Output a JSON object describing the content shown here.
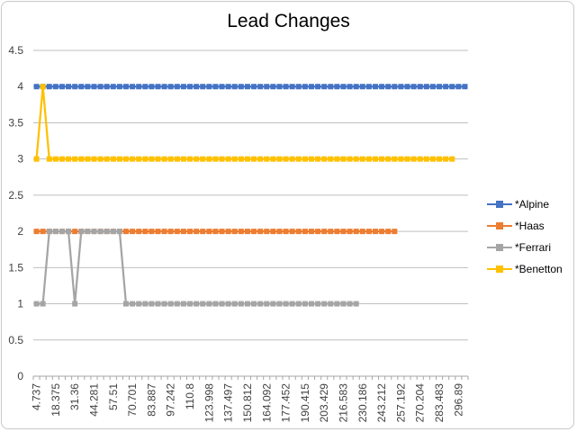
{
  "chart_data": {
    "type": "line",
    "title": "Lead Changes",
    "xlabel": "",
    "ylabel": "",
    "ylim": [
      0,
      4.5
    ],
    "yticks": [
      "0",
      "0.5",
      "1",
      "1.5",
      "2",
      "2.5",
      "3",
      "3.5",
      "4",
      "4.5"
    ],
    "x_tick_labels": [
      "4.737",
      "18.375",
      "31.36",
      "44.281",
      "57.51",
      "70.701",
      "83.887",
      "97.242",
      "110.8",
      "123.998",
      "137.497",
      "150.812",
      "164.092",
      "177.452",
      "190.415",
      "203.429",
      "216.583",
      "230.186",
      "243.212",
      "257.192",
      "270.204",
      "283.483",
      "296.89"
    ],
    "categories_count": 68,
    "grid": true,
    "legend_position": "right",
    "series": [
      {
        "name": "*Alpine",
        "color": "#4472C4",
        "values": [
          4,
          4,
          4,
          4,
          4,
          4,
          4,
          4,
          4,
          4,
          4,
          4,
          4,
          4,
          4,
          4,
          4,
          4,
          4,
          4,
          4,
          4,
          4,
          4,
          4,
          4,
          4,
          4,
          4,
          4,
          4,
          4,
          4,
          4,
          4,
          4,
          4,
          4,
          4,
          4,
          4,
          4,
          4,
          4,
          4,
          4,
          4,
          4,
          4,
          4,
          4,
          4,
          4,
          4,
          4,
          4,
          4,
          4,
          4,
          4,
          4,
          4,
          4,
          4,
          4,
          4,
          4,
          4
        ]
      },
      {
        "name": "*Haas",
        "color": "#ED7D31",
        "values": [
          2,
          2,
          2,
          2,
          2,
          2,
          2,
          2,
          2,
          2,
          2,
          2,
          2,
          2,
          2,
          2,
          2,
          2,
          2,
          2,
          2,
          2,
          2,
          2,
          2,
          2,
          2,
          2,
          2,
          2,
          2,
          2,
          2,
          2,
          2,
          2,
          2,
          2,
          2,
          2,
          2,
          2,
          2,
          2,
          2,
          2,
          2,
          2,
          2,
          2,
          2,
          2,
          2,
          2,
          2,
          2,
          2
        ]
      },
      {
        "name": "*Ferrari",
        "color": "#A5A5A5",
        "values": [
          1,
          1,
          2,
          2,
          2,
          2,
          1,
          2,
          2,
          2,
          2,
          2,
          2,
          2,
          1,
          1,
          1,
          1,
          1,
          1,
          1,
          1,
          1,
          1,
          1,
          1,
          1,
          1,
          1,
          1,
          1,
          1,
          1,
          1,
          1,
          1,
          1,
          1,
          1,
          1,
          1,
          1,
          1,
          1,
          1,
          1,
          1,
          1,
          1,
          1,
          1
        ]
      },
      {
        "name": "*Benetton",
        "color": "#FFC000",
        "values": [
          3,
          4,
          3,
          3,
          3,
          3,
          3,
          3,
          3,
          3,
          3,
          3,
          3,
          3,
          3,
          3,
          3,
          3,
          3,
          3,
          3,
          3,
          3,
          3,
          3,
          3,
          3,
          3,
          3,
          3,
          3,
          3,
          3,
          3,
          3,
          3,
          3,
          3,
          3,
          3,
          3,
          3,
          3,
          3,
          3,
          3,
          3,
          3,
          3,
          3,
          3,
          3,
          3,
          3,
          3,
          3,
          3,
          3,
          3,
          3,
          3,
          3,
          3,
          3,
          3,
          3
        ]
      }
    ]
  }
}
